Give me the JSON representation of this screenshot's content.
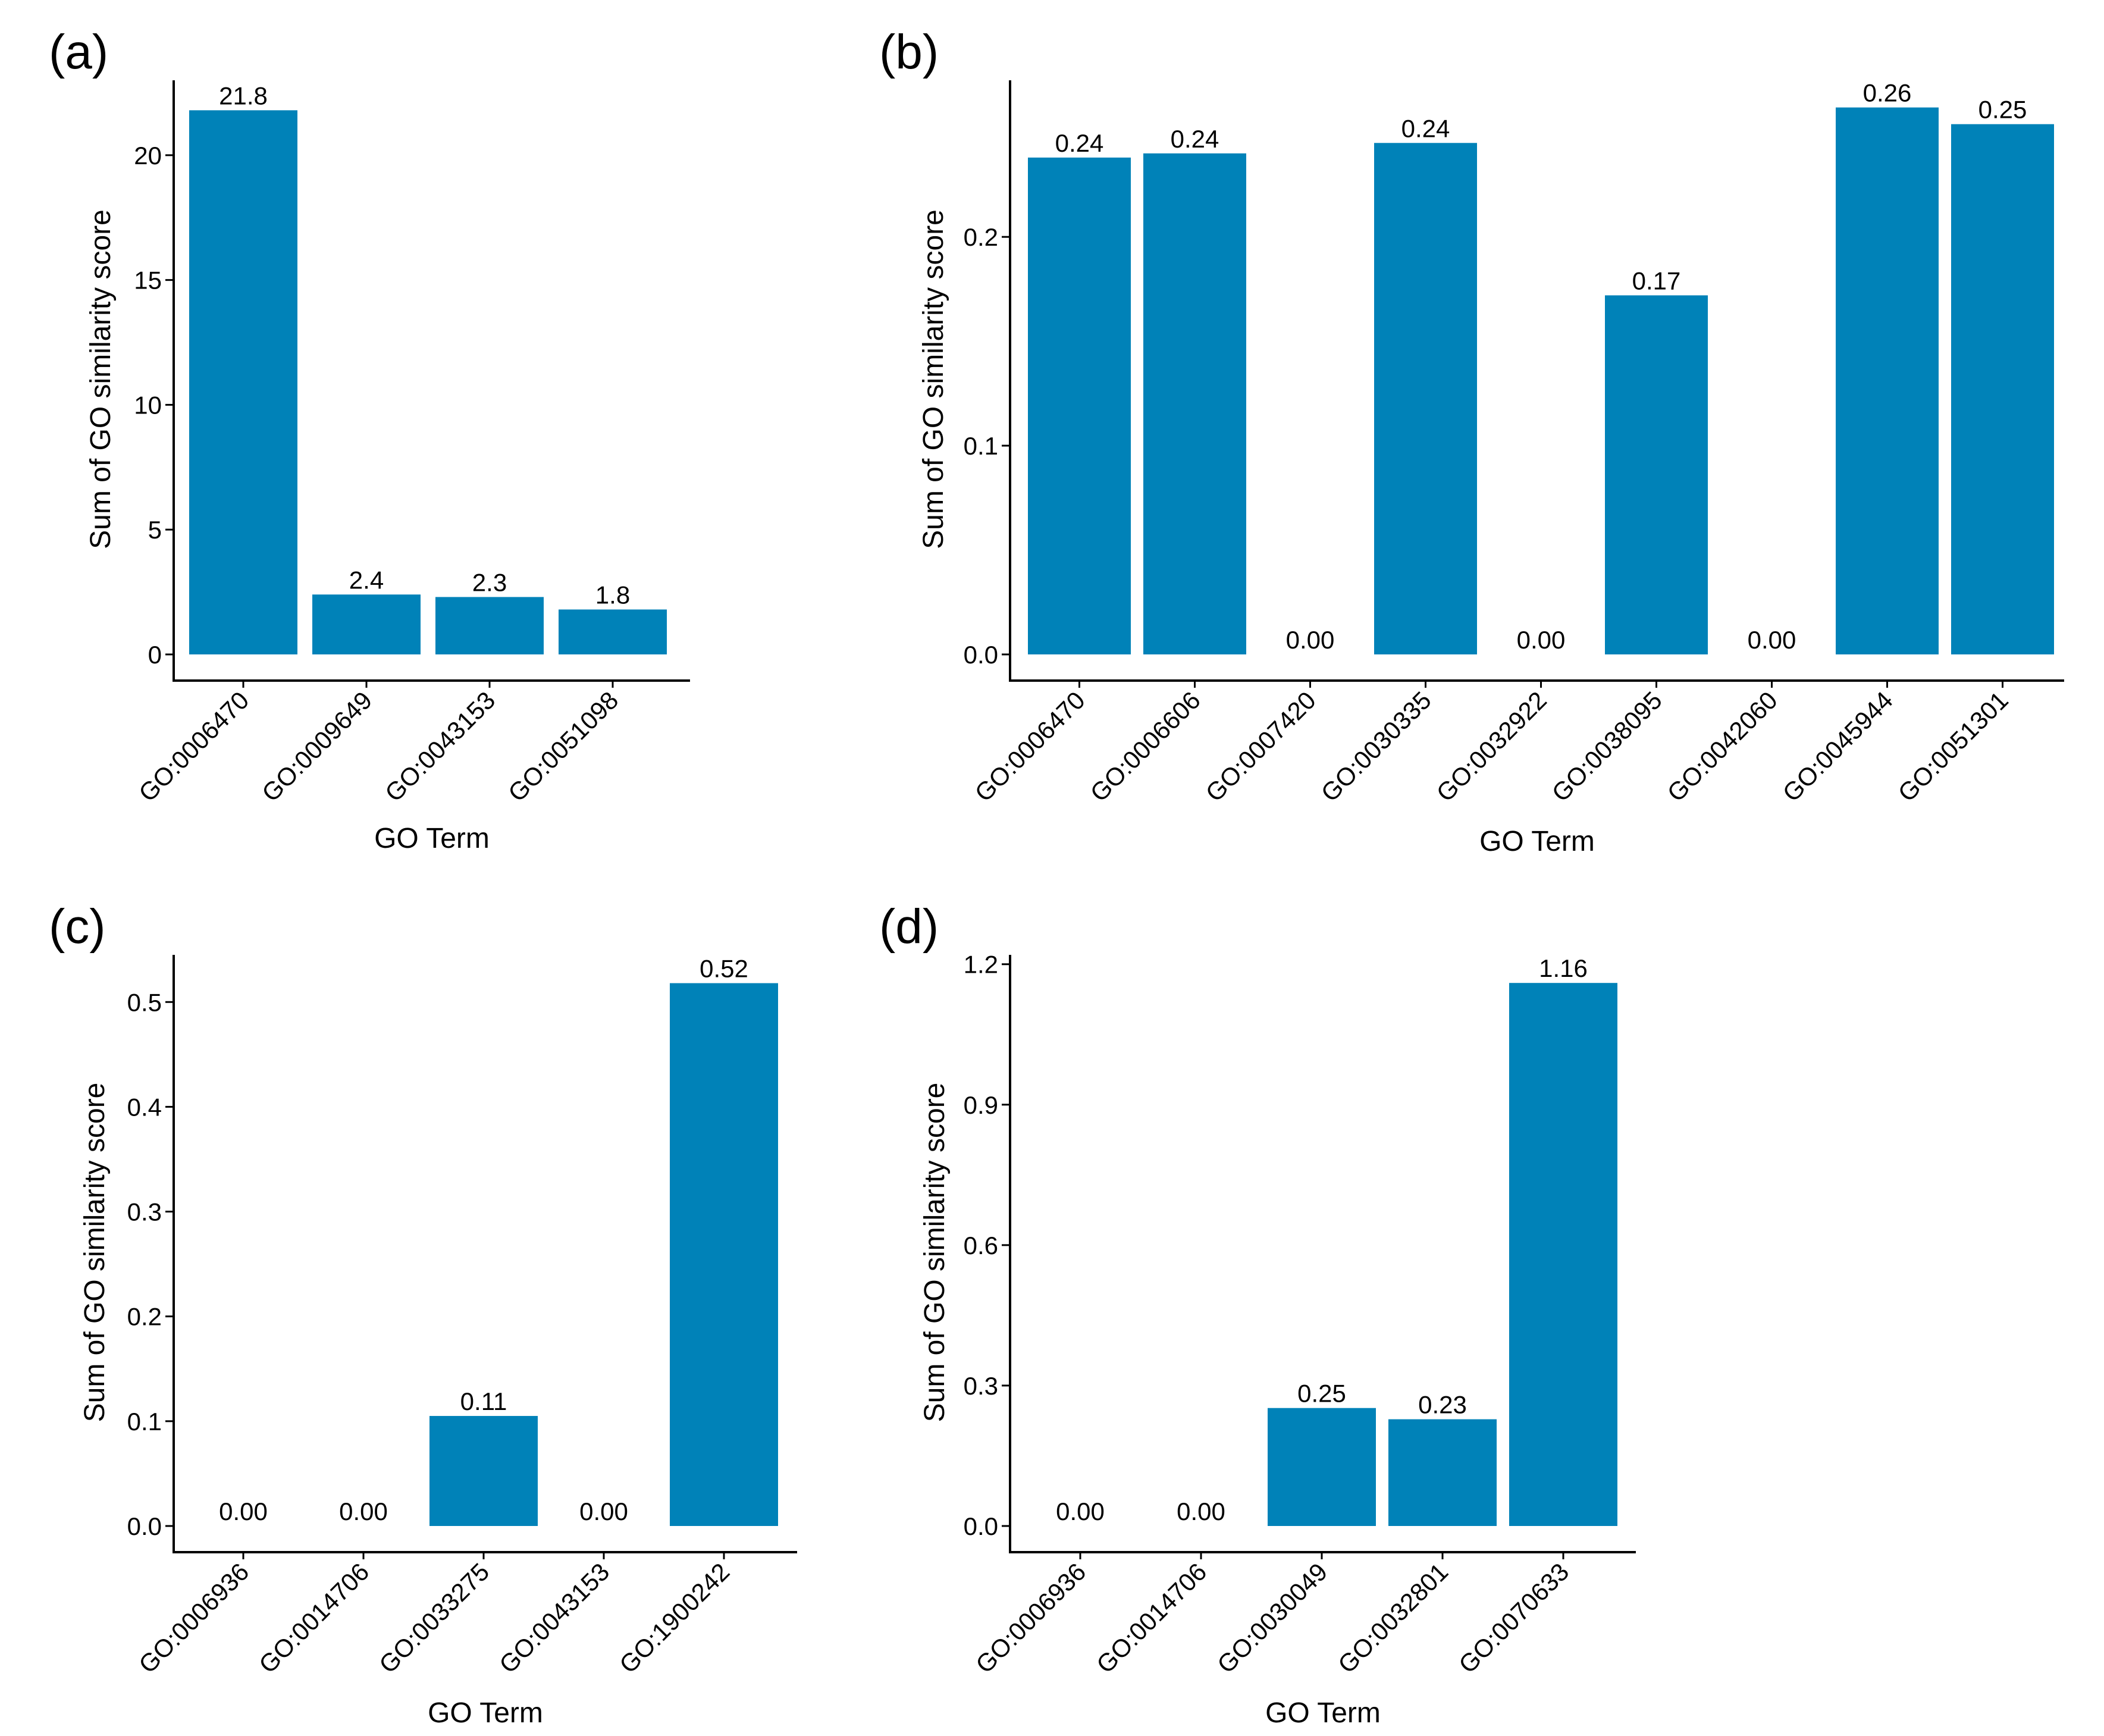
{
  "chart_data": [
    {
      "panel": "(a)",
      "type": "bar",
      "categories": [
        "GO:0006470",
        "GO:0009649",
        "GO:0043153",
        "GO:0051098"
      ],
      "values": [
        21.8,
        2.4,
        2.3,
        1.8
      ],
      "value_labels": [
        "21.8",
        "2.4",
        "2.3",
        "1.8"
      ],
      "xlabel": "GO Term",
      "ylabel": "Sum of GO similarity score",
      "ylim": [
        0,
        23
      ],
      "yticks": [
        0,
        5,
        10,
        15,
        20
      ],
      "ytick_labels": [
        "0",
        "5",
        "10",
        "15",
        "20"
      ],
      "bar_color": "#0082b8",
      "grid": false
    },
    {
      "panel": "(b)",
      "type": "bar",
      "categories": [
        "GO:0006470",
        "GO:0006606",
        "GO:0007420",
        "GO:0030335",
        "GO:0032922",
        "GO:0038095",
        "GO:0042060",
        "GO:0045944",
        "GO:0051301"
      ],
      "values": [
        0.238,
        0.24,
        0.0,
        0.245,
        0.0,
        0.172,
        0.0,
        0.262,
        0.254
      ],
      "value_labels": [
        "0.24",
        "0.24",
        "0.00",
        "0.24",
        "0.00",
        "0.17",
        "0.00",
        "0.26",
        "0.25"
      ],
      "xlabel": "GO Term",
      "ylabel": "Sum of GO similarity score",
      "ylim": [
        0,
        0.275
      ],
      "yticks": [
        0,
        0.1,
        0.2
      ],
      "ytick_labels": [
        "0.0",
        "0.1",
        "0.2"
      ],
      "bar_color": "#0082b8",
      "grid": false
    },
    {
      "panel": "(c)",
      "type": "bar",
      "categories": [
        "GO:0006936",
        "GO:0014706",
        "GO:0033275",
        "GO:0043153",
        "GO:1900242"
      ],
      "values": [
        0.0,
        0.0,
        0.105,
        0.0,
        0.518
      ],
      "value_labels": [
        "0.00",
        "0.00",
        "0.11",
        "0.00",
        "0.52"
      ],
      "xlabel": "GO Term",
      "ylabel": "Sum of GO similarity score",
      "ylim": [
        0,
        0.545
      ],
      "yticks": [
        0,
        0.1,
        0.2,
        0.3,
        0.4,
        0.5
      ],
      "ytick_labels": [
        "0.0",
        "0.1",
        "0.2",
        "0.3",
        "0.4",
        "0.5"
      ],
      "bar_color": "#0082b8",
      "grid": false
    },
    {
      "panel": "(d)",
      "type": "bar",
      "categories": [
        "GO:0006936",
        "GO:0014706",
        "GO:0030049",
        "GO:0032801",
        "GO:0070633"
      ],
      "values": [
        0.0,
        0.0,
        0.252,
        0.228,
        1.16
      ],
      "value_labels": [
        "0.00",
        "0.00",
        "0.25",
        "0.23",
        "1.16"
      ],
      "xlabel": "GO Term",
      "ylabel": "Sum of GO similarity score",
      "ylim": [
        0,
        1.22
      ],
      "yticks": [
        0,
        0.3,
        0.6,
        0.9,
        1.2
      ],
      "ytick_labels": [
        "0.0",
        "0.3",
        "0.6",
        "0.9",
        "1.2"
      ],
      "bar_color": "#0082b8",
      "grid": false
    }
  ]
}
